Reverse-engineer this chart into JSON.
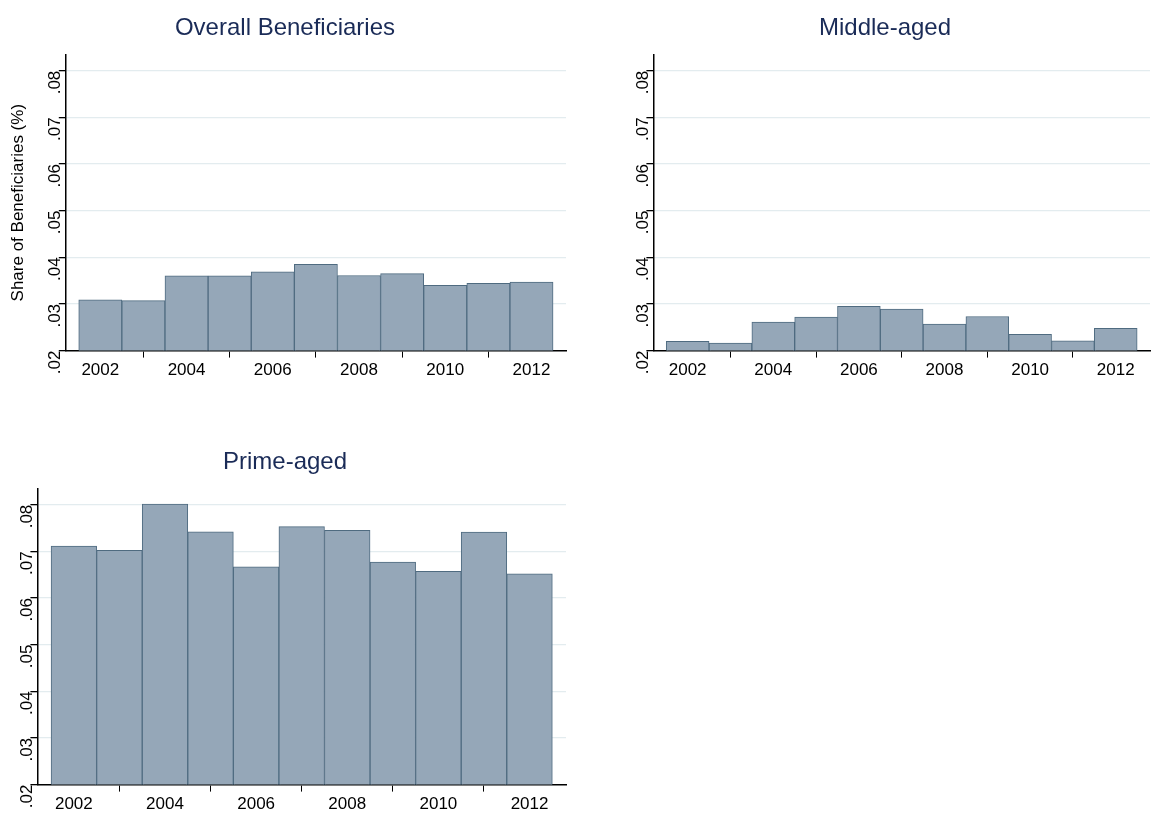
{
  "chart_data": [
    {
      "type": "histogram",
      "title": "Overall Beneficiaries",
      "ylabel": "Share of Beneficiaries (%)",
      "bins": [
        2001.5,
        2002.5,
        2003.5,
        2004.5,
        2005.5,
        2006.5,
        2007.5,
        2008.5,
        2009.5,
        2010.5,
        2011.5,
        2012.5
      ],
      "values": [
        0.0309,
        0.0307,
        0.036,
        0.036,
        0.0369,
        0.0385,
        0.0361,
        0.0365,
        0.034,
        0.0344,
        0.0347
      ],
      "color": "#95a7b8",
      "xlim": [
        2001.2,
        2012.8
      ],
      "xticks": [
        2002,
        2004,
        2006,
        2008,
        2010,
        2012
      ],
      "ylim": [
        0.02,
        0.0834
      ],
      "yticks": [
        {
          "value": 0.02,
          "label": ".02"
        },
        {
          "value": 0.03,
          "label": ".03"
        },
        {
          "value": 0.04,
          "label": ".04"
        },
        {
          "value": 0.05,
          "label": ".05"
        },
        {
          "value": 0.06,
          "label": ".06"
        },
        {
          "value": 0.07,
          "label": ".07"
        },
        {
          "value": 0.08,
          "label": ".08"
        }
      ],
      "grid": "y",
      "legend": false
    },
    {
      "type": "histogram",
      "title": "Middle-aged",
      "bins": [
        2001.5,
        2002.5,
        2003.5,
        2004.5,
        2005.5,
        2006.5,
        2007.5,
        2008.5,
        2009.5,
        2010.5,
        2011.5,
        2012.5
      ],
      "values": [
        0.022,
        0.0216,
        0.0261,
        0.0272,
        0.0295,
        0.0289,
        0.0257,
        0.0273,
        0.0235,
        0.0221,
        0.0248
      ],
      "color": "#95a7b8",
      "xlim": [
        2001.2,
        2012.8
      ],
      "xticks": [
        2002,
        2004,
        2006,
        2008,
        2010,
        2012
      ],
      "ylim": [
        0.02,
        0.0834
      ],
      "yticks": [
        {
          "value": 0.02,
          "label": ".02"
        },
        {
          "value": 0.03,
          "label": ".03"
        },
        {
          "value": 0.04,
          "label": ".04"
        },
        {
          "value": 0.05,
          "label": ".05"
        },
        {
          "value": 0.06,
          "label": ".06"
        },
        {
          "value": 0.07,
          "label": ".07"
        },
        {
          "value": 0.08,
          "label": ".08"
        }
      ],
      "grid": "y",
      "legend": false
    },
    {
      "type": "histogram",
      "title": "Prime-aged",
      "bins": [
        2001.5,
        2002.5,
        2003.5,
        2004.5,
        2005.5,
        2006.5,
        2007.5,
        2008.5,
        2009.5,
        2010.5,
        2011.5,
        2012.5
      ],
      "values": [
        0.0711,
        0.0702,
        0.0801,
        0.0742,
        0.0667,
        0.0753,
        0.0745,
        0.0677,
        0.0657,
        0.0741,
        0.0652
      ],
      "color": "#95a7b8",
      "xlim": [
        2001.2,
        2012.8
      ],
      "xticks": [
        2002,
        2004,
        2006,
        2008,
        2010,
        2012
      ],
      "ylim": [
        0.02,
        0.0834
      ],
      "yticks": [
        {
          "value": 0.02,
          "label": ".02"
        },
        {
          "value": 0.03,
          "label": ".03"
        },
        {
          "value": 0.04,
          "label": ".04"
        },
        {
          "value": 0.05,
          "label": ".05"
        },
        {
          "value": 0.06,
          "label": ".06"
        },
        {
          "value": 0.07,
          "label": ".07"
        },
        {
          "value": 0.08,
          "label": ".08"
        }
      ],
      "grid": "y",
      "legend": false
    }
  ]
}
